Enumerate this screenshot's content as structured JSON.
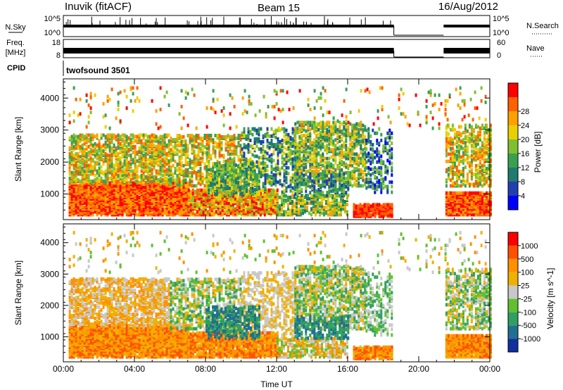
{
  "header": {
    "radar": "Inuvik (fitACF)",
    "beam": "Beam 15",
    "date": "16/Aug/2012"
  },
  "top_panels": {
    "nsky_label": "N.Sky",
    "nsky_ticks": [
      "10^5",
      "10^0"
    ],
    "nsearch_label": "N.Search",
    "freq_label": "Freq.",
    "freq_unit": "[MHz]",
    "freq_ticks": [
      "18",
      "8"
    ],
    "nave_label": "Nave",
    "nave_ticks": [
      "60",
      "0"
    ],
    "cpid_label": "CPID",
    "cpid_value": "twofsound 3501"
  },
  "colors": {
    "power": [
      "#0000ff",
      "#2040b0",
      "#207a70",
      "#3aa050",
      "#80c030",
      "#e8d000",
      "#ffa000",
      "#ff6000",
      "#ff0000"
    ],
    "velocity": [
      "#ff0000",
      "#ff5000",
      "#ff9000",
      "#f0b000",
      "#c8c8c8",
      "#60c030",
      "#30a060",
      "#207090",
      "#1030a0"
    ]
  },
  "chart_data": [
    {
      "type": "heatmap",
      "name": "power",
      "title": "",
      "xlabel": "",
      "ylabel": "Slant Range [km]",
      "xlim": [
        0,
        24
      ],
      "ylim": [
        200,
        4600
      ],
      "xticks": [
        "00:00",
        "04:00",
        "08:00",
        "12:00",
        "16:00",
        "20:00",
        "00:00"
      ],
      "yticks": [
        "1000",
        "2000",
        "3000",
        "4000"
      ],
      "data_gap_hours": [
        18.6,
        21.4
      ],
      "colorbar": {
        "label": "Power [dB]",
        "ticks": [
          "4",
          "8",
          "12",
          "16",
          "20",
          "24",
          "28"
        ],
        "range": [
          0,
          32
        ]
      }
    },
    {
      "type": "heatmap",
      "name": "velocity",
      "title": "",
      "xlabel": "Time UT",
      "ylabel": "Slant Range [km]",
      "xlim": [
        0,
        24
      ],
      "ylim": [
        200,
        4600
      ],
      "xticks": [
        "00:00",
        "04:00",
        "08:00",
        "12:00",
        "16:00",
        "20:00",
        "00:00"
      ],
      "yticks": [
        "1000",
        "2000",
        "3000",
        "4000"
      ],
      "data_gap_hours": [
        18.6,
        21.4
      ],
      "colorbar": {
        "label": "Velocity [m s^-1]",
        "ticks": [
          "1000",
          "500",
          "100",
          "25",
          "-25",
          "-100",
          "-500",
          "-1000"
        ]
      }
    }
  ]
}
